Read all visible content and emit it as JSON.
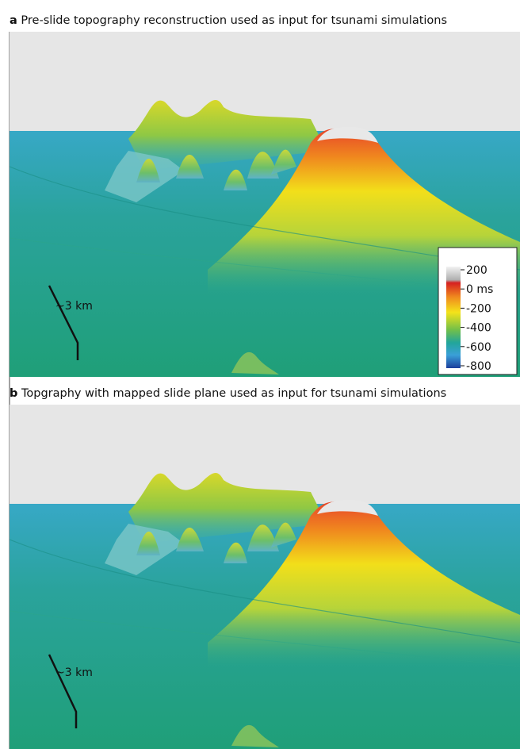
{
  "panels": [
    {
      "label": "a",
      "caption": "Pre-slide topography reconstruction used as input for tsunami simulations",
      "scale_label": "~3 km"
    },
    {
      "label": "b",
      "caption": "Topgraphy with mapped slide plane used as input for tsunami simulations",
      "scale_label": "~3 km"
    }
  ],
  "colorbar": {
    "labels": [
      "200",
      "0 ms",
      "-200",
      "-400",
      "-600",
      "-800"
    ]
  }
}
